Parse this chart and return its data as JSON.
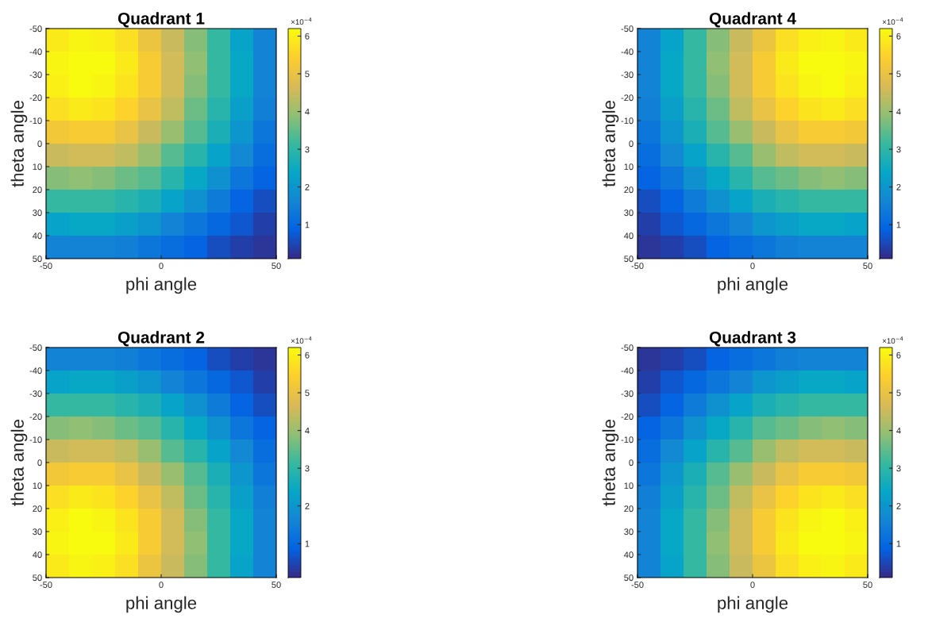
{
  "chart_data": [
    {
      "type": "heatmap",
      "title": "Quadrant 1",
      "xlabel": "phi angle",
      "ylabel": "theta angle",
      "xlim": [
        -50,
        50
      ],
      "xticks": [
        -50,
        0,
        50
      ],
      "ylim": [
        50,
        -50
      ],
      "yticks": [
        -50,
        -40,
        -30,
        -20,
        -10,
        0,
        10,
        20,
        30,
        40,
        50
      ],
      "clim": [
        0.1,
        6.2
      ],
      "cticks": [
        1,
        2,
        3,
        4,
        5,
        6
      ],
      "annotations": [
        "×10$^{−4}$"
      ],
      "cells": [
        [
          5.9,
          6.1,
          6.0,
          5.7,
          5.1,
          4.5,
          3.8,
          3.1,
          2.3,
          1.6
        ],
        [
          6.1,
          6.2,
          6.2,
          5.9,
          5.3,
          4.6,
          3.9,
          3.1,
          2.4,
          1.6
        ],
        [
          6.0,
          6.2,
          6.1,
          5.8,
          5.3,
          4.6,
          3.8,
          3.1,
          2.4,
          1.6
        ],
        [
          5.7,
          5.9,
          5.8,
          5.5,
          5.0,
          4.4,
          3.6,
          2.9,
          2.2,
          1.5
        ],
        [
          5.2,
          5.3,
          5.3,
          5.0,
          4.5,
          4.0,
          3.4,
          2.7,
          2.0,
          1.3
        ],
        [
          4.5,
          4.6,
          4.6,
          4.4,
          4.0,
          3.4,
          2.9,
          2.3,
          1.7,
          1.1
        ],
        [
          3.8,
          3.9,
          3.8,
          3.6,
          3.4,
          2.9,
          2.4,
          1.9,
          1.3,
          0.9
        ],
        [
          3.1,
          3.1,
          3.1,
          2.9,
          2.7,
          2.3,
          1.9,
          1.4,
          0.9,
          0.6
        ],
        [
          2.3,
          2.4,
          2.4,
          2.2,
          2.0,
          1.6,
          1.3,
          1.0,
          0.7,
          0.4
        ],
        [
          1.6,
          1.6,
          1.6,
          1.5,
          1.3,
          1.1,
          0.9,
          0.6,
          0.4,
          0.25
        ]
      ]
    },
    {
      "type": "heatmap",
      "title": "Quadrant 4",
      "xlabel": "phi angle",
      "ylabel": "theta angle",
      "xlim": [
        -50,
        50
      ],
      "xticks": [
        -50,
        0,
        50
      ],
      "ylim": [
        50,
        -50
      ],
      "yticks": [
        -50,
        -40,
        -30,
        -20,
        -10,
        0,
        10,
        20,
        30,
        40,
        50
      ],
      "clim": [
        0.1,
        6.2
      ],
      "cticks": [
        1,
        2,
        3,
        4,
        5,
        6
      ],
      "annotations": [
        "×10$^{−4}$"
      ],
      "cells": [
        [
          1.6,
          2.3,
          3.1,
          3.8,
          4.5,
          5.1,
          5.7,
          6.0,
          6.1,
          5.9
        ],
        [
          1.6,
          2.4,
          3.1,
          3.9,
          4.6,
          5.3,
          5.9,
          6.2,
          6.2,
          6.1
        ],
        [
          1.6,
          2.4,
          3.1,
          3.8,
          4.6,
          5.3,
          5.8,
          6.1,
          6.2,
          6.0
        ],
        [
          1.5,
          2.2,
          2.9,
          3.6,
          4.4,
          5.0,
          5.5,
          5.8,
          5.9,
          5.7
        ],
        [
          1.3,
          2.0,
          2.7,
          3.4,
          4.0,
          4.5,
          5.0,
          5.3,
          5.3,
          5.2
        ],
        [
          1.1,
          1.7,
          2.3,
          2.9,
          3.4,
          4.0,
          4.4,
          4.6,
          4.6,
          4.5
        ],
        [
          0.9,
          1.3,
          1.9,
          2.4,
          2.9,
          3.4,
          3.6,
          3.8,
          3.9,
          3.8
        ],
        [
          0.6,
          0.9,
          1.4,
          1.9,
          2.3,
          2.7,
          2.9,
          3.1,
          3.1,
          3.1
        ],
        [
          0.4,
          0.7,
          1.0,
          1.3,
          1.6,
          2.0,
          2.2,
          2.4,
          2.4,
          2.3
        ],
        [
          0.25,
          0.4,
          0.6,
          0.9,
          1.1,
          1.3,
          1.5,
          1.6,
          1.6,
          1.6
        ]
      ]
    },
    {
      "type": "heatmap",
      "title": "Quadrant 2",
      "xlabel": "phi angle",
      "ylabel": "theta angle",
      "xlim": [
        -50,
        50
      ],
      "xticks": [
        -50,
        0,
        50
      ],
      "ylim": [
        50,
        -50
      ],
      "yticks": [
        -50,
        -40,
        -30,
        -20,
        -10,
        0,
        10,
        20,
        30,
        40,
        50
      ],
      "clim": [
        0.1,
        6.2
      ],
      "cticks": [
        1,
        2,
        3,
        4,
        5,
        6
      ],
      "annotations": [
        "×10$^{−4}$"
      ],
      "cells": [
        [
          1.6,
          1.6,
          1.6,
          1.5,
          1.3,
          1.1,
          0.9,
          0.6,
          0.4,
          0.25
        ],
        [
          2.3,
          2.4,
          2.4,
          2.2,
          2.0,
          1.6,
          1.3,
          1.0,
          0.7,
          0.4
        ],
        [
          3.1,
          3.1,
          3.1,
          2.9,
          2.7,
          2.3,
          1.9,
          1.4,
          0.9,
          0.6
        ],
        [
          3.8,
          3.9,
          3.8,
          3.6,
          3.4,
          2.9,
          2.4,
          1.9,
          1.3,
          0.9
        ],
        [
          4.5,
          4.6,
          4.6,
          4.4,
          4.0,
          3.4,
          2.9,
          2.3,
          1.7,
          1.1
        ],
        [
          5.2,
          5.3,
          5.3,
          5.0,
          4.5,
          4.0,
          3.4,
          2.7,
          2.0,
          1.3
        ],
        [
          5.7,
          5.9,
          5.8,
          5.5,
          5.0,
          4.4,
          3.6,
          2.9,
          2.2,
          1.5
        ],
        [
          6.0,
          6.2,
          6.1,
          5.8,
          5.3,
          4.6,
          3.8,
          3.1,
          2.4,
          1.6
        ],
        [
          6.1,
          6.2,
          6.2,
          5.9,
          5.3,
          4.6,
          3.9,
          3.1,
          2.4,
          1.6
        ],
        [
          5.9,
          6.1,
          6.0,
          5.7,
          5.1,
          4.5,
          3.8,
          3.1,
          2.3,
          1.6
        ]
      ]
    },
    {
      "type": "heatmap",
      "title": "Quadrant 3",
      "xlabel": "phi angle",
      "ylabel": "theta angle",
      "xlim": [
        -50,
        50
      ],
      "xticks": [
        -50,
        0,
        50
      ],
      "ylim": [
        50,
        -50
      ],
      "yticks": [
        -50,
        -40,
        -30,
        -20,
        -10,
        0,
        10,
        20,
        30,
        40,
        50
      ],
      "clim": [
        0.1,
        6.2
      ],
      "cticks": [
        1,
        2,
        3,
        4,
        5,
        6
      ],
      "annotations": [
        "×10$^{−4}$"
      ],
      "cells": [
        [
          0.25,
          0.4,
          0.6,
          0.9,
          1.1,
          1.3,
          1.5,
          1.6,
          1.6,
          1.6
        ],
        [
          0.4,
          0.7,
          1.0,
          1.3,
          1.6,
          2.0,
          2.2,
          2.4,
          2.4,
          2.3
        ],
        [
          0.6,
          0.9,
          1.4,
          1.9,
          2.3,
          2.7,
          2.9,
          3.1,
          3.1,
          3.1
        ],
        [
          0.9,
          1.3,
          1.9,
          2.4,
          2.9,
          3.4,
          3.6,
          3.8,
          3.9,
          3.8
        ],
        [
          1.1,
          1.7,
          2.3,
          2.9,
          3.4,
          4.0,
          4.4,
          4.6,
          4.6,
          4.5
        ],
        [
          1.3,
          2.0,
          2.7,
          3.4,
          4.0,
          4.5,
          5.0,
          5.3,
          5.3,
          5.2
        ],
        [
          1.5,
          2.2,
          2.9,
          3.6,
          4.4,
          5.0,
          5.5,
          5.8,
          5.9,
          5.7
        ],
        [
          1.6,
          2.4,
          3.1,
          3.8,
          4.6,
          5.3,
          5.8,
          6.1,
          6.2,
          6.0
        ],
        [
          1.6,
          2.4,
          3.1,
          3.9,
          4.6,
          5.3,
          5.9,
          6.2,
          6.2,
          6.1
        ],
        [
          1.6,
          2.3,
          3.1,
          3.8,
          4.5,
          5.1,
          5.7,
          6.0,
          6.1,
          5.9
        ]
      ]
    }
  ]
}
